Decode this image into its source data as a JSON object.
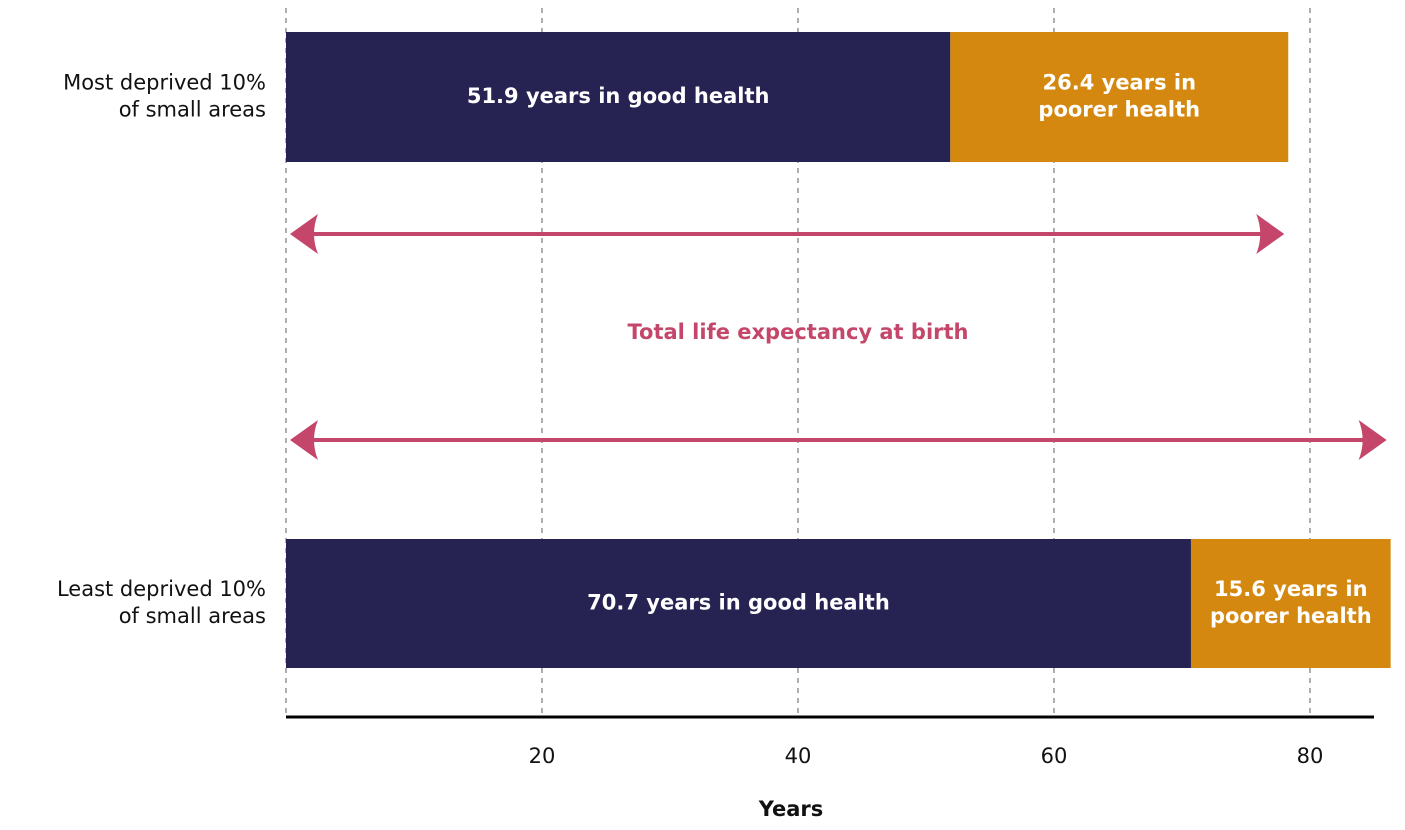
{
  "chart_data": {
    "type": "stacked-barh",
    "categories": [
      "Most deprived 10%\nof small areas",
      "Least deprived 10%\nof small areas"
    ],
    "series": [
      {
        "color": "#262251",
        "values": [
          51.9,
          70.7
        ],
        "value_labels": [
          "51.9 years in good health",
          "70.7 years in good health"
        ]
      },
      {
        "color": "#d4880f",
        "values": [
          26.4,
          15.6
        ],
        "value_labels": [
          "26.4 years in\npoorer health",
          "15.6 years in\npoorer health"
        ]
      }
    ],
    "annotation": "Total life expectancy at birth",
    "annotation_color": "#c4476b",
    "xlabel": "Years",
    "xlim": [
      0,
      85
    ],
    "xticks": [
      20,
      40,
      60,
      80
    ],
    "grid": true
  }
}
